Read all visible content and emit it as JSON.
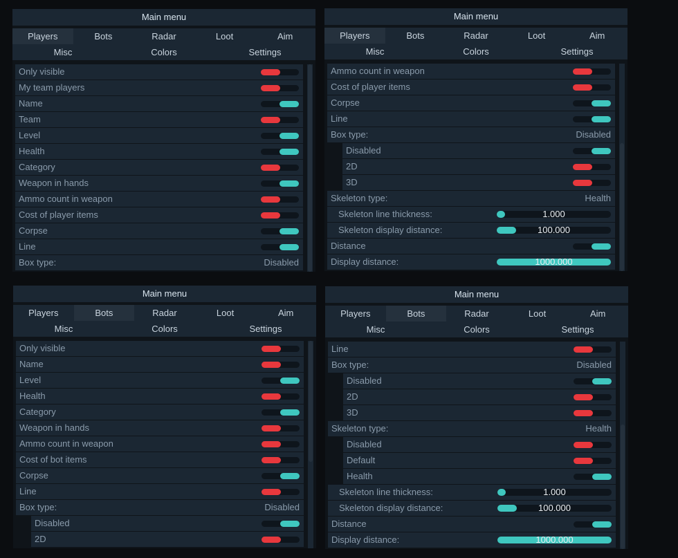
{
  "colors": {
    "on": "#3fc7bf",
    "off": "#e8383d",
    "row_bg": "#1b2733",
    "panel_bg": "#0f1419"
  },
  "panels": [
    {
      "title": "Main menu",
      "tabs_row1": [
        "Players",
        "Bots",
        "Radar",
        "Loot",
        "Aim"
      ],
      "tabs_row2": [
        "Misc",
        "Colors",
        "Settings"
      ],
      "active_tab": "Players",
      "rows": [
        {
          "label": "Only visible",
          "kind": "toggle",
          "state": "off"
        },
        {
          "label": "My team players",
          "kind": "toggle",
          "state": "off"
        },
        {
          "label": "Name",
          "kind": "toggle",
          "state": "on"
        },
        {
          "label": "Team",
          "kind": "toggle",
          "state": "off"
        },
        {
          "label": "Level",
          "kind": "toggle",
          "state": "on"
        },
        {
          "label": "Health",
          "kind": "toggle",
          "state": "on"
        },
        {
          "label": "Category",
          "kind": "toggle",
          "state": "off"
        },
        {
          "label": "Weapon in hands",
          "kind": "toggle",
          "state": "on"
        },
        {
          "label": "Ammo count in weapon",
          "kind": "toggle",
          "state": "off"
        },
        {
          "label": "Cost of player items",
          "kind": "toggle",
          "state": "off"
        },
        {
          "label": "Corpse",
          "kind": "toggle",
          "state": "on"
        },
        {
          "label": "Line",
          "kind": "toggle",
          "state": "on"
        },
        {
          "label": "Box type:",
          "kind": "value",
          "value": "Disabled"
        }
      ]
    },
    {
      "title": "Main menu",
      "tabs_row1": [
        "Players",
        "Bots",
        "Radar",
        "Loot",
        "Aim"
      ],
      "tabs_row2": [
        "Misc",
        "Colors",
        "Settings"
      ],
      "active_tab": "Players",
      "rows": [
        {
          "label": "Ammo count in weapon",
          "kind": "toggle",
          "state": "off"
        },
        {
          "label": "Cost of player items",
          "kind": "toggle",
          "state": "off"
        },
        {
          "label": "Corpse",
          "kind": "toggle",
          "state": "on"
        },
        {
          "label": "Line",
          "kind": "toggle",
          "state": "on"
        },
        {
          "label": "Box type:",
          "kind": "value",
          "value": "Disabled"
        },
        {
          "label": "Disabled",
          "kind": "toggle",
          "state": "on",
          "sub": true
        },
        {
          "label": "2D",
          "kind": "toggle",
          "state": "off",
          "sub": true
        },
        {
          "label": "3D",
          "kind": "toggle",
          "state": "off",
          "sub": true
        },
        {
          "label": "Skeleton type:",
          "kind": "value",
          "value": "Health"
        },
        {
          "label": "Skeleton line thickness:",
          "kind": "slider",
          "value": "1.000",
          "fill": 0.07,
          "indent": true
        },
        {
          "label": "Skeleton display distance:",
          "kind": "slider",
          "value": "100.000",
          "fill": 0.17,
          "indent": true
        },
        {
          "label": "Distance",
          "kind": "toggle",
          "state": "on"
        },
        {
          "label": "Display distance:",
          "kind": "slider",
          "value": "1000.000",
          "fill": 1.0
        }
      ]
    },
    {
      "title": "Main menu",
      "tabs_row1": [
        "Players",
        "Bots",
        "Radar",
        "Loot",
        "Aim"
      ],
      "tabs_row2": [
        "Misc",
        "Colors",
        "Settings"
      ],
      "active_tab": "Bots",
      "rows": [
        {
          "label": "Only visible",
          "kind": "toggle",
          "state": "off"
        },
        {
          "label": "Name",
          "kind": "toggle",
          "state": "off"
        },
        {
          "label": "Level",
          "kind": "toggle",
          "state": "on"
        },
        {
          "label": "Health",
          "kind": "toggle",
          "state": "off"
        },
        {
          "label": "Category",
          "kind": "toggle",
          "state": "on"
        },
        {
          "label": "Weapon in hands",
          "kind": "toggle",
          "state": "off"
        },
        {
          "label": "Ammo count in weapon",
          "kind": "toggle",
          "state": "off"
        },
        {
          "label": "Cost of bot items",
          "kind": "toggle",
          "state": "off"
        },
        {
          "label": "Corpse",
          "kind": "toggle",
          "state": "on"
        },
        {
          "label": "Line",
          "kind": "toggle",
          "state": "off"
        },
        {
          "label": "Box type:",
          "kind": "value",
          "value": "Disabled"
        },
        {
          "label": "Disabled",
          "kind": "toggle",
          "state": "on",
          "sub": true
        },
        {
          "label": "2D",
          "kind": "toggle",
          "state": "off",
          "sub": true
        }
      ]
    },
    {
      "title": "Main menu",
      "tabs_row1": [
        "Players",
        "Bots",
        "Radar",
        "Loot",
        "Aim"
      ],
      "tabs_row2": [
        "Misc",
        "Colors",
        "Settings"
      ],
      "active_tab": "Bots",
      "rows": [
        {
          "label": "Line",
          "kind": "toggle",
          "state": "off"
        },
        {
          "label": "Box type:",
          "kind": "value",
          "value": "Disabled"
        },
        {
          "label": "Disabled",
          "kind": "toggle",
          "state": "on",
          "sub": true
        },
        {
          "label": "2D",
          "kind": "toggle",
          "state": "off",
          "sub": true
        },
        {
          "label": "3D",
          "kind": "toggle",
          "state": "off",
          "sub": true
        },
        {
          "label": "Skeleton type:",
          "kind": "value",
          "value": "Health"
        },
        {
          "label": "Disabled",
          "kind": "toggle",
          "state": "off",
          "sub": true
        },
        {
          "label": "Default",
          "kind": "toggle",
          "state": "off",
          "sub": true
        },
        {
          "label": "Health",
          "kind": "toggle",
          "state": "on",
          "sub": true
        },
        {
          "label": "Skeleton line thickness:",
          "kind": "slider",
          "value": "1.000",
          "fill": 0.07,
          "indent": true
        },
        {
          "label": "Skeleton display distance:",
          "kind": "slider",
          "value": "100.000",
          "fill": 0.17,
          "indent": true
        },
        {
          "label": "Distance",
          "kind": "toggle",
          "state": "on"
        },
        {
          "label": "Display distance:",
          "kind": "slider",
          "value": "1000.000",
          "fill": 1.0
        }
      ]
    }
  ]
}
